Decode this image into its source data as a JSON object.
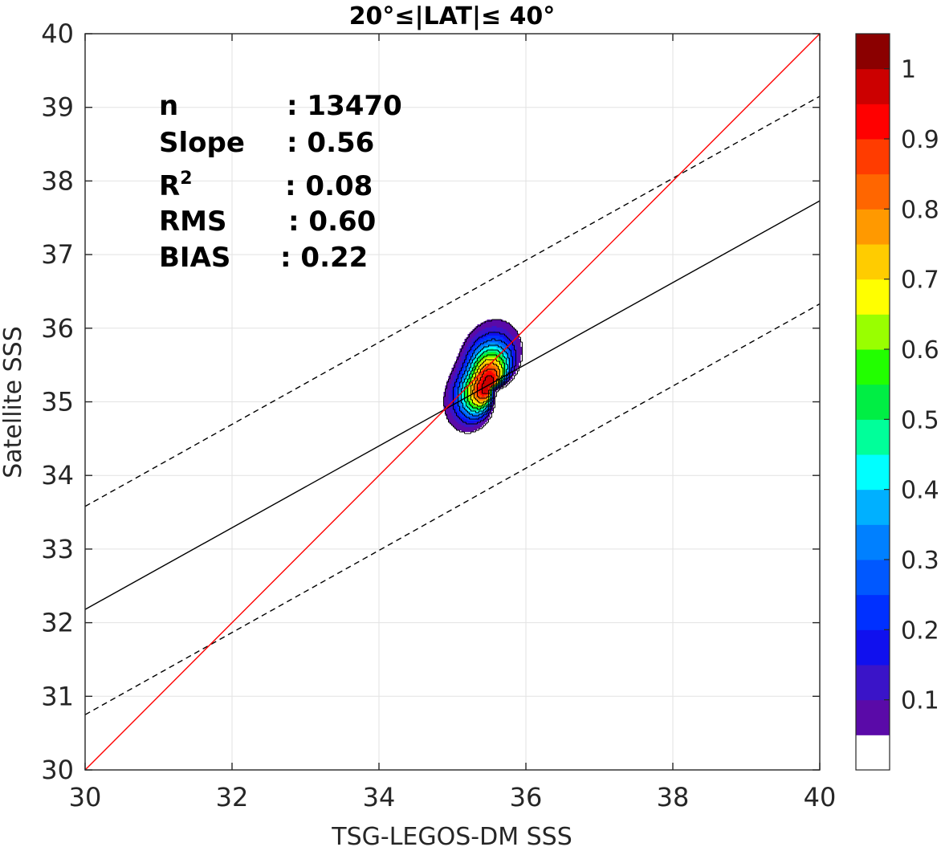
{
  "chart_data": {
    "type": "contour",
    "title": "20°≤|LAT|≤ 40°",
    "xlabel": "TSG-LEGOS-DM SSS",
    "ylabel": "Satellite SSS",
    "xlim": [
      30,
      40
    ],
    "ylim": [
      30,
      40
    ],
    "xticks": [
      "30",
      "32",
      "34",
      "36",
      "38",
      "40"
    ],
    "yticks": [
      "30",
      "31",
      "32",
      "33",
      "34",
      "35",
      "36",
      "37",
      "38",
      "39",
      "40"
    ],
    "grid": true,
    "stats": {
      "n_label": "n",
      "n_value": ": 13470",
      "slope_label": "Slope",
      "slope_value": ": 0.56",
      "r2_label": "R",
      "r2_sup": "2",
      "r2_value": ": 0.08",
      "rms_label": "RMS",
      "rms_value": ": 0.60",
      "bias_label": "BIAS",
      "bias_value": ": 0.22"
    },
    "lines": {
      "identity": {
        "color": "#ff0000",
        "x": [
          30,
          40
        ],
        "y": [
          30,
          40
        ]
      },
      "regression": {
        "color": "#000000",
        "x": [
          30,
          40
        ],
        "y": [
          32.18,
          37.73
        ]
      },
      "upper_bound": {
        "color": "#000000",
        "style": "dashed",
        "x": [
          30,
          40
        ],
        "y": [
          33.58,
          39.15
        ]
      },
      "lower_bound": {
        "color": "#000000",
        "style": "dashed",
        "x": [
          30,
          40
        ],
        "y": [
          30.75,
          36.33
        ]
      }
    },
    "density": {
      "center_x": 35.48,
      "center_y": 35.22,
      "peak": 1.0
    },
    "colorbar": {
      "ticks": [
        "0.1",
        "0.2",
        "0.3",
        "0.4",
        "0.5",
        "0.6",
        "0.7",
        "0.8",
        "0.9",
        "1"
      ],
      "levels": [
        0.05,
        0.1,
        0.15,
        0.2,
        0.25,
        0.3,
        0.35,
        0.4,
        0.45,
        0.5,
        0.55,
        0.6,
        0.65,
        0.7,
        0.75,
        0.8,
        0.85,
        0.9,
        0.95,
        1.0
      ],
      "colors": [
        "#ffffff",
        "#5a0aa8",
        "#3a14c8",
        "#1010ee",
        "#0030ff",
        "#0058ff",
        "#0080ff",
        "#00b0ff",
        "#00ffff",
        "#00ff9a",
        "#00ee44",
        "#22ff00",
        "#99ff00",
        "#ffff00",
        "#ffcc00",
        "#ff9900",
        "#ff6600",
        "#ff3c00",
        "#ff0000",
        "#cc0000",
        "#8b0000"
      ]
    }
  }
}
